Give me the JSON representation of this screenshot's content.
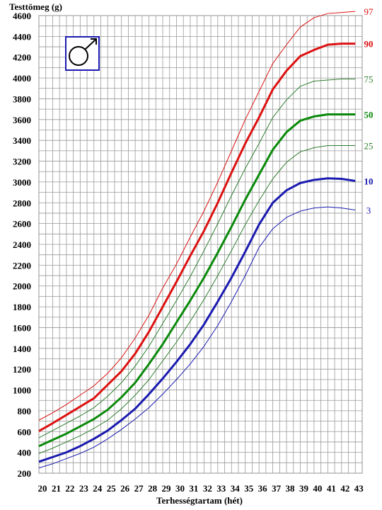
{
  "chart_data": {
    "type": "line",
    "title": "",
    "ylabel": "Testtömeg (g)",
    "xlabel": "Terhességtartam (hét)",
    "xlim": [
      20,
      43
    ],
    "ylim": [
      200,
      4600
    ],
    "x_ticks": [
      "20",
      "21",
      "22",
      "23",
      "24",
      "25",
      "26",
      "27",
      "28",
      "29",
      "30",
      "31",
      "32",
      "33",
      "34",
      "35",
      "36",
      "37",
      "38",
      "39",
      "40",
      "41",
      "42",
      "43"
    ],
    "y_ticks": [
      "200",
      "400",
      "600",
      "800",
      "1000",
      "1200",
      "1400",
      "1600",
      "1800",
      "2000",
      "2200",
      "2400",
      "2600",
      "2800",
      "3000",
      "3200",
      "3400",
      "3600",
      "3800",
      "4000",
      "4200",
      "4400",
      "4600"
    ],
    "grid": true,
    "symbol": "male",
    "x": [
      20,
      21,
      22,
      23,
      24,
      25,
      26,
      27,
      28,
      29,
      30,
      31,
      32,
      33,
      34,
      35,
      36,
      37,
      38,
      39,
      40,
      41,
      42,
      43
    ],
    "series": [
      {
        "name": "97",
        "color": "#dd1111",
        "bold": false,
        "values": [
          710,
          780,
          860,
          950,
          1040,
          1160,
          1310,
          1500,
          1720,
          1980,
          2210,
          2470,
          2720,
          3000,
          3300,
          3600,
          3870,
          4140,
          4320,
          4490,
          4580,
          4620,
          4630,
          4640
        ]
      },
      {
        "name": "90",
        "color": "#dd1111",
        "bold": true,
        "values": [
          605,
          680,
          760,
          840,
          920,
          1050,
          1180,
          1350,
          1560,
          1800,
          2040,
          2290,
          2530,
          2800,
          3090,
          3370,
          3620,
          3890,
          4070,
          4210,
          4270,
          4320,
          4330,
          4330
        ]
      },
      {
        "name": "75",
        "color": "#2e7d2e",
        "bold": false,
        "values": [
          540,
          610,
          680,
          750,
          830,
          940,
          1070,
          1230,
          1420,
          1640,
          1860,
          2090,
          2340,
          2600,
          2870,
          3130,
          3370,
          3620,
          3790,
          3920,
          3970,
          3980,
          3990,
          3990
        ]
      },
      {
        "name": "50",
        "color": "#0a8a0a",
        "bold": true,
        "values": [
          460,
          520,
          580,
          650,
          720,
          810,
          930,
          1070,
          1250,
          1440,
          1650,
          1860,
          2080,
          2320,
          2570,
          2830,
          3070,
          3310,
          3480,
          3590,
          3630,
          3650,
          3650,
          3650
        ]
      },
      {
        "name": "25",
        "color": "#2e7d2e",
        "bold": false,
        "values": [
          390,
          440,
          500,
          560,
          630,
          710,
          820,
          950,
          1100,
          1280,
          1460,
          1660,
          1870,
          2100,
          2340,
          2590,
          2820,
          3030,
          3190,
          3290,
          3330,
          3350,
          3350,
          3350
        ]
      },
      {
        "name": "10",
        "color": "#1a1ab0",
        "bold": true,
        "values": [
          310,
          355,
          400,
          460,
          530,
          610,
          710,
          820,
          960,
          1110,
          1270,
          1440,
          1630,
          1850,
          2080,
          2330,
          2590,
          2800,
          2920,
          2990,
          3020,
          3035,
          3030,
          3010
        ]
      },
      {
        "name": "3",
        "color": "#1a1ab0",
        "bold": false,
        "values": [
          250,
          290,
          340,
          390,
          450,
          530,
          620,
          720,
          830,
          960,
          1100,
          1250,
          1420,
          1620,
          1850,
          2100,
          2370,
          2550,
          2660,
          2720,
          2750,
          2760,
          2750,
          2730
        ]
      }
    ]
  }
}
